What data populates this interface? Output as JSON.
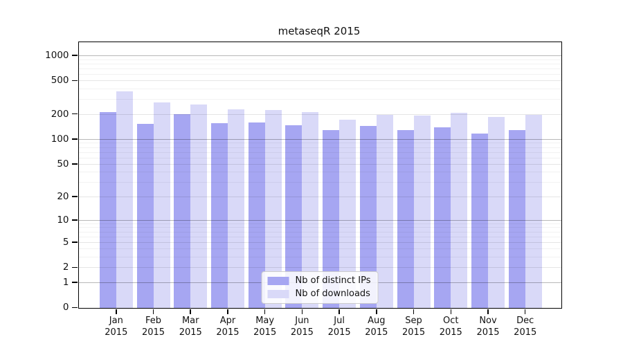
{
  "title": "metaseqR 2015",
  "chart_data": {
    "type": "bar",
    "title": "metaseqR 2015",
    "categories": [
      {
        "month": "Jan",
        "year": "2015"
      },
      {
        "month": "Feb",
        "year": "2015"
      },
      {
        "month": "Mar",
        "year": "2015"
      },
      {
        "month": "Apr",
        "year": "2015"
      },
      {
        "month": "May",
        "year": "2015"
      },
      {
        "month": "Jun",
        "year": "2015"
      },
      {
        "month": "Jul",
        "year": "2015"
      },
      {
        "month": "Aug",
        "year": "2015"
      },
      {
        "month": "Sep",
        "year": "2015"
      },
      {
        "month": "Oct",
        "year": "2015"
      },
      {
        "month": "Nov",
        "year": "2015"
      },
      {
        "month": "Dec",
        "year": "2015"
      }
    ],
    "series": [
      {
        "name": "Nb of distinct IPs",
        "color": "#a6a6f2",
        "values": [
          210,
          151,
          197,
          154,
          157,
          147,
          129,
          144,
          129,
          139,
          117,
          129
        ]
      },
      {
        "name": "Nb of downloads",
        "color": "#d9d9f8",
        "values": [
          374,
          276,
          258,
          228,
          224,
          211,
          171,
          196,
          193,
          208,
          183,
          196
        ]
      }
    ],
    "yscale": "log1p",
    "y_ticks": [
      0,
      1,
      2,
      5,
      10,
      20,
      50,
      100,
      200,
      500,
      1000
    ],
    "ylim": [
      0,
      1400
    ],
    "xlabel": "",
    "ylabel": "",
    "grid": "horizontal",
    "legend_position": "lower-center-inside"
  }
}
